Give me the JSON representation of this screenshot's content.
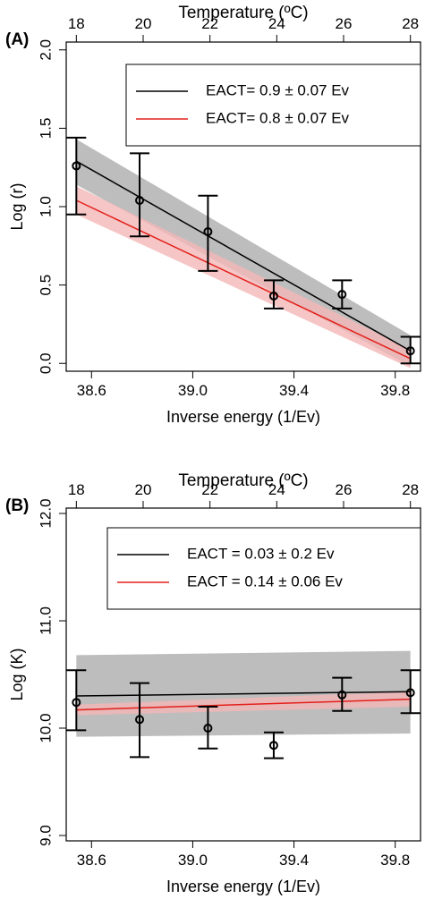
{
  "chart_data": [
    {
      "panel_label": "(A)",
      "type": "scatter",
      "title": "",
      "top_axis_label": "Temperature (ºC)",
      "top_ticks": [
        18,
        20,
        22,
        24,
        26,
        28
      ],
      "xlabel": "Inverse energy (1/Ev)",
      "ylabel": "Log (r)",
      "xlim": [
        38.5,
        39.9
      ],
      "ylim": [
        -0.05,
        2.05
      ],
      "xticks": [
        "38.6",
        "39.0",
        "39.4",
        "39.8"
      ],
      "yticks": [
        "0.0",
        "0.5",
        "1.0",
        "1.5",
        "2.0"
      ],
      "points": [
        {
          "x": 38.54,
          "y": 1.26,
          "lo": 0.95,
          "hi": 1.44
        },
        {
          "x": 38.79,
          "y": 1.04,
          "lo": 0.81,
          "hi": 1.34
        },
        {
          "x": 39.06,
          "y": 0.84,
          "lo": 0.59,
          "hi": 1.07
        },
        {
          "x": 39.32,
          "y": 0.43,
          "lo": 0.35,
          "hi": 0.53
        },
        {
          "x": 39.59,
          "y": 0.44,
          "lo": 0.35,
          "hi": 0.53
        },
        {
          "x": 39.86,
          "y": 0.08,
          "lo": 0.0,
          "hi": 0.17
        }
      ],
      "fits": [
        {
          "name": "EACT= 0.9 ± 0.07 Ev",
          "color": "#000000",
          "band_color": "#bdbdbd",
          "x": [
            38.54,
            39.86
          ],
          "y": [
            1.29,
            0.08
          ],
          "band_lo": [
            1.14,
            -0.02
          ],
          "band_hi": [
            1.43,
            0.18
          ]
        },
        {
          "name": "EACT= 0.8 ± 0.07 Ev",
          "color": "#e3201b",
          "band_color": "#f4b6b6",
          "x": [
            38.54,
            39.86
          ],
          "y": [
            1.04,
            0.03
          ],
          "band_lo": [
            0.95,
            -0.03
          ],
          "band_hi": [
            1.13,
            0.09
          ]
        }
      ],
      "legend_position": "top-right"
    },
    {
      "panel_label": "(B)",
      "type": "scatter",
      "title": "",
      "top_axis_label": "Temperature (ºC)",
      "top_ticks": [
        18,
        20,
        22,
        24,
        26,
        28
      ],
      "xlabel": "Inverse energy (1/Ev)",
      "ylabel": "Log (K)",
      "xlim": [
        38.5,
        39.9
      ],
      "ylim": [
        8.95,
        12.05
      ],
      "xticks": [
        "38.6",
        "39.0",
        "39.4",
        "39.8"
      ],
      "yticks": [
        "9.0",
        "10.0",
        "11.0",
        "12.0"
      ],
      "points": [
        {
          "x": 38.54,
          "y": 10.24,
          "lo": 9.98,
          "hi": 10.54
        },
        {
          "x": 38.79,
          "y": 10.08,
          "lo": 9.73,
          "hi": 10.42
        },
        {
          "x": 39.06,
          "y": 10.0,
          "lo": 9.81,
          "hi": 10.2
        },
        {
          "x": 39.32,
          "y": 9.84,
          "lo": 9.72,
          "hi": 9.96
        },
        {
          "x": 39.59,
          "y": 10.31,
          "lo": 10.16,
          "hi": 10.47
        },
        {
          "x": 39.86,
          "y": 10.33,
          "lo": 10.14,
          "hi": 10.54
        }
      ],
      "fits": [
        {
          "name": "EACT = 0.03 ± 0.2 Ev",
          "color": "#000000",
          "band_color": "#bdbdbd",
          "x": [
            38.54,
            39.86
          ],
          "y": [
            10.3,
            10.34
          ],
          "band_lo": [
            9.92,
            9.95
          ],
          "band_hi": [
            10.68,
            10.72
          ]
        },
        {
          "name": "EACT = 0.14 ± 0.06 Ev",
          "color": "#e3201b",
          "band_color": "#f4b6b6",
          "x": [
            38.54,
            39.86
          ],
          "y": [
            10.17,
            10.27
          ],
          "band_lo": [
            10.12,
            10.2
          ],
          "band_hi": [
            10.22,
            10.34
          ]
        }
      ],
      "legend_position": "top-right"
    }
  ]
}
